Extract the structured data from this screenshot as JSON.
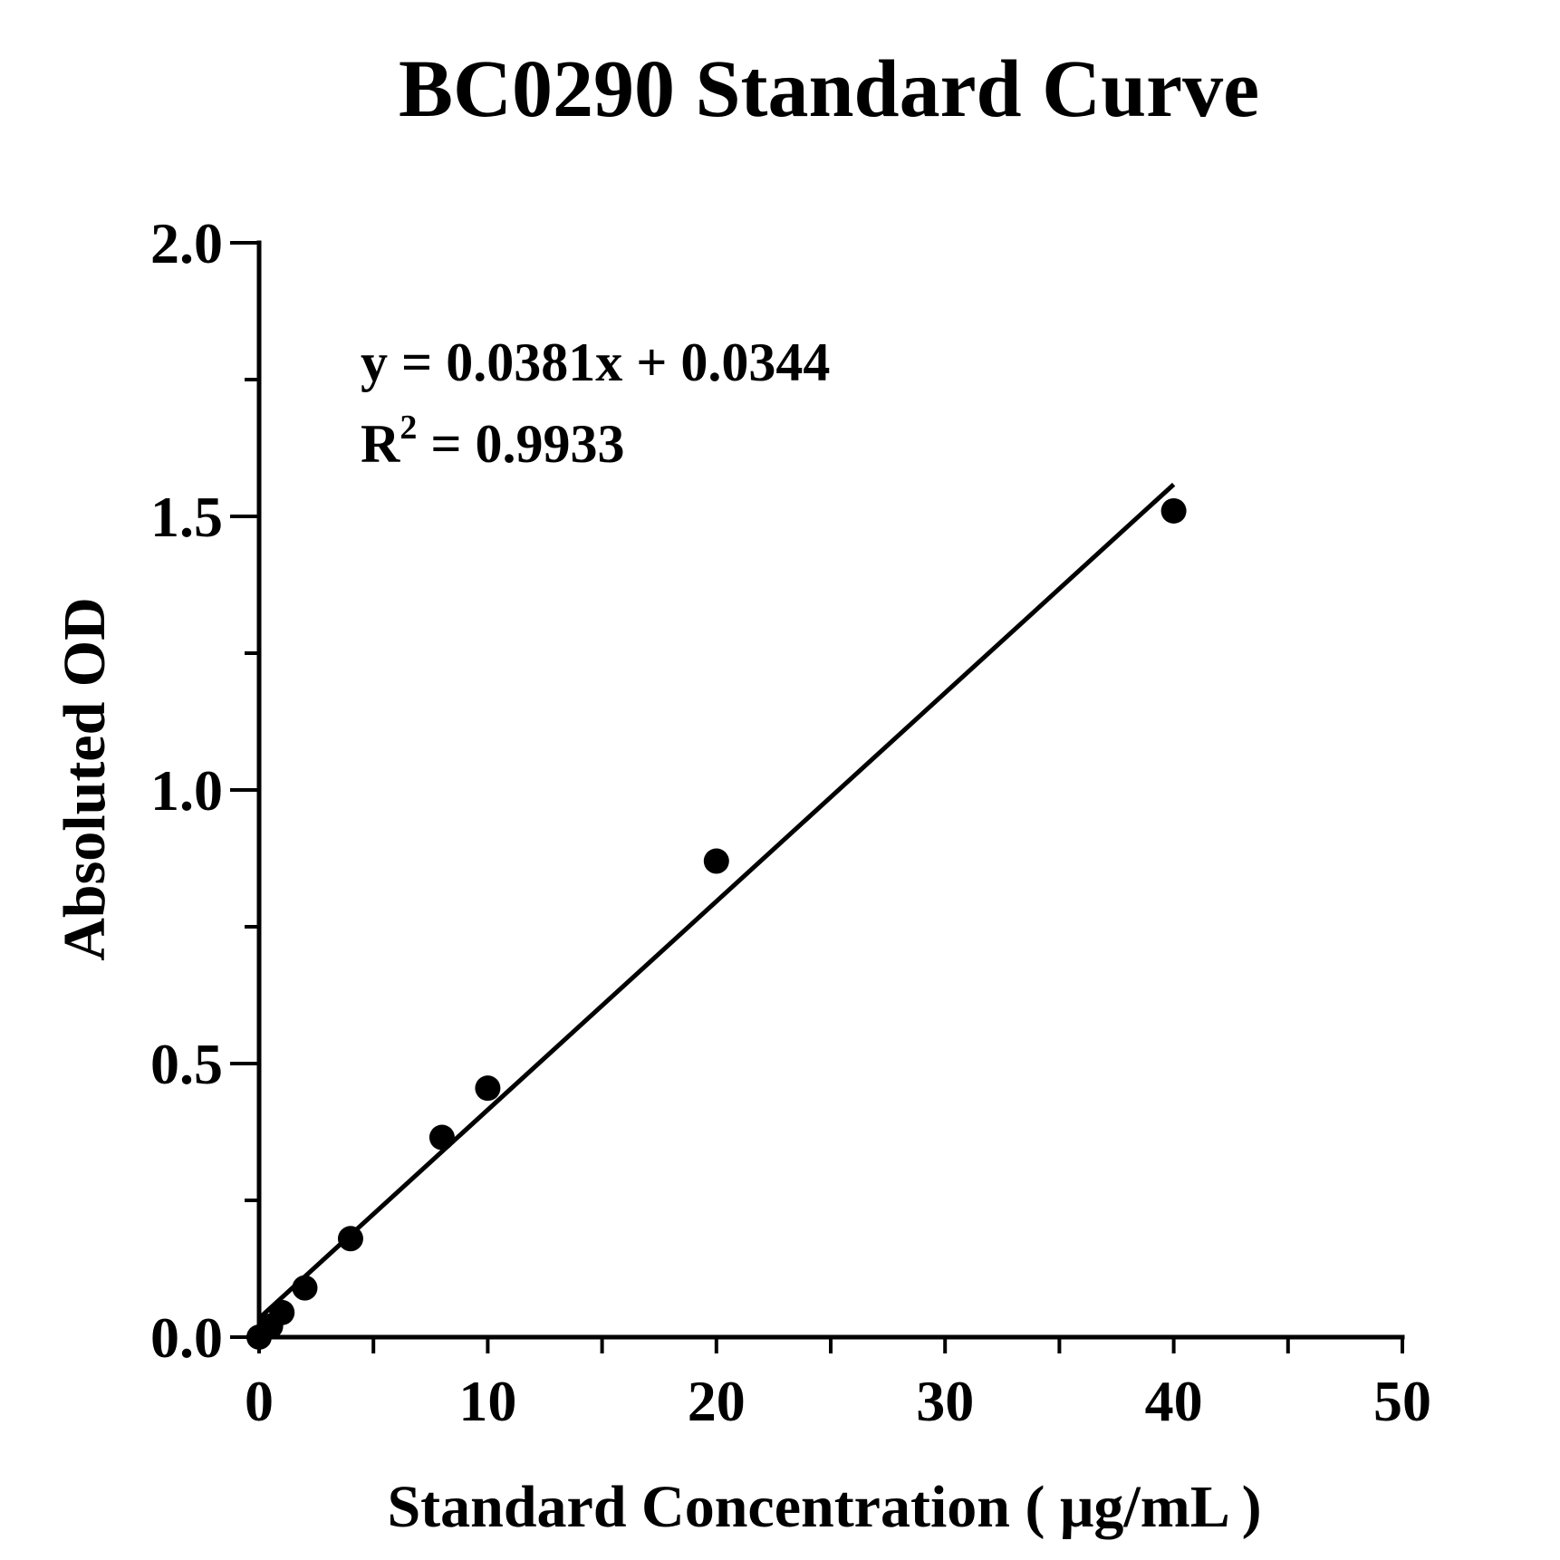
{
  "chart_data": {
    "type": "scatter",
    "title": "BC0290 Standard Curve",
    "xlabel": "Standard Concentration ( μg/mL )",
    "ylabel": "Absoluted OD",
    "xlim": [
      0,
      50
    ],
    "ylim": [
      0,
      2.0
    ],
    "x_ticks": [
      "0",
      "10",
      "20",
      "30",
      "40",
      "50"
    ],
    "y_ticks": [
      "0.0",
      "0.5",
      "1.0",
      "1.5",
      "2.0"
    ],
    "grid": false,
    "series": [
      {
        "points": [
          {
            "x": 0,
            "y": 0.0
          },
          {
            "x": 0.5,
            "y": 0.02
          },
          {
            "x": 1,
            "y": 0.045
          },
          {
            "x": 2,
            "y": 0.09
          },
          {
            "x": 4,
            "y": 0.18
          },
          {
            "x": 8,
            "y": 0.365
          },
          {
            "x": 10,
            "y": 0.455
          },
          {
            "x": 20,
            "y": 0.87
          },
          {
            "x": 40,
            "y": 1.51
          }
        ]
      }
    ],
    "fit": {
      "slope": 0.0381,
      "intercept": 0.0344,
      "x_range": [
        0,
        40
      ]
    },
    "annotations": {
      "equation": "y = 0.0381x + 0.0344",
      "r2_prefix": "R",
      "r2_sup": "2",
      "r2_value": " = 0.9933"
    }
  }
}
